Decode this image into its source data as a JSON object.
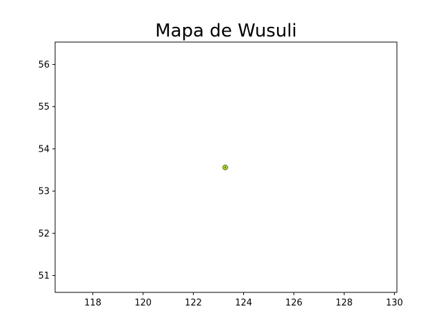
{
  "chart_data": {
    "type": "scatter",
    "title": "Mapa de Wusuli",
    "xlabel": "",
    "ylabel": "",
    "xlim": [
      116.5,
      130.1
    ],
    "ylim": [
      50.6,
      56.53
    ],
    "x_ticks": [
      118,
      120,
      122,
      124,
      126,
      128,
      130
    ],
    "y_ticks": [
      51,
      52,
      53,
      54,
      55,
      56
    ],
    "grid": false,
    "series": [
      {
        "points": [
          {
            "x": 123.27,
            "y": 53.56
          }
        ],
        "marker_fill": "#b6e03a",
        "marker_edge": "#556b10"
      }
    ]
  }
}
